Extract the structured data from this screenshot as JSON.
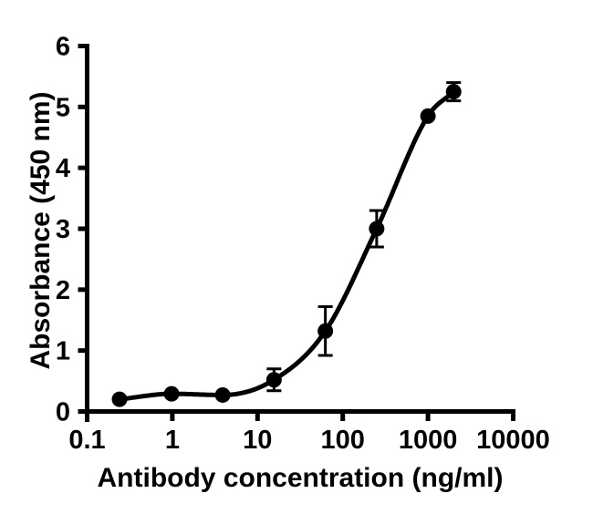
{
  "figure": {
    "background": "#ffffff",
    "foreground": "#000000"
  },
  "chart_data": {
    "type": "scatter",
    "title": "",
    "xlabel": "Antibody concentration (ng/ml)",
    "ylabel": "Absorbance (450 nm)",
    "x_scale": "log10",
    "xlim": [
      0.1,
      10000
    ],
    "ylim": [
      0,
      6
    ],
    "grid": false,
    "legend": "none",
    "x_ticks": [
      {
        "value": 0.1,
        "label": "0.1"
      },
      {
        "value": 1,
        "label": "1"
      },
      {
        "value": 10,
        "label": "10"
      },
      {
        "value": 100,
        "label": "100"
      },
      {
        "value": 1000,
        "label": "1000"
      },
      {
        "value": 10000,
        "label": "10000"
      }
    ],
    "y_ticks": [
      {
        "value": 0,
        "label": "0"
      },
      {
        "value": 1,
        "label": "1"
      },
      {
        "value": 2,
        "label": "2"
      },
      {
        "value": 3,
        "label": "3"
      },
      {
        "value": 4,
        "label": "4"
      },
      {
        "value": 5,
        "label": "5"
      },
      {
        "value": 6,
        "label": "6"
      }
    ],
    "series": [
      {
        "marker": "filled-circle",
        "color": "#000000",
        "line": "sigmoidal-fit-curve",
        "points": [
          {
            "x": 0.24,
            "y": 0.2,
            "err": 0
          },
          {
            "x": 0.98,
            "y": 0.29,
            "err": 0
          },
          {
            "x": 3.9,
            "y": 0.27,
            "err": 0
          },
          {
            "x": 15.6,
            "y": 0.52,
            "err": 0.18
          },
          {
            "x": 62.5,
            "y": 1.32,
            "err": 0.4
          },
          {
            "x": 250,
            "y": 3.0,
            "err": 0.3
          },
          {
            "x": 1000,
            "y": 4.85,
            "err": 0
          },
          {
            "x": 2000,
            "y": 5.25,
            "err": 0.15
          }
        ]
      }
    ]
  }
}
